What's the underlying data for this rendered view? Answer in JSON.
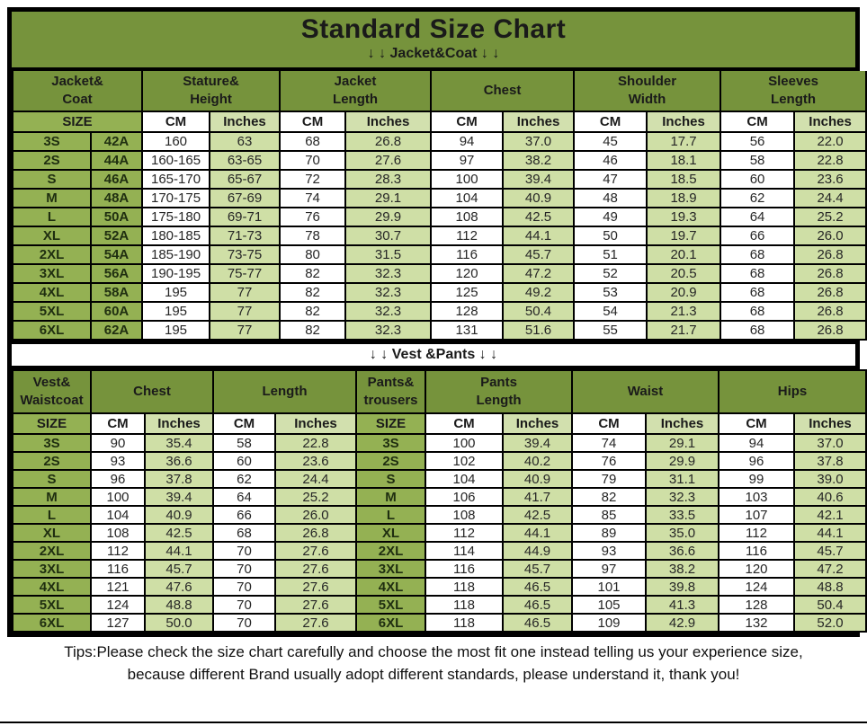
{
  "title": "Standard Size Chart",
  "palette": {
    "header_green": "#76933C",
    "label_green": "#94B153",
    "cell_light_green": "#CFDFA6",
    "cell_white": "#FFFFFF",
    "grid_line": "#000000"
  },
  "labels": {
    "size": "SIZE",
    "cm": "CM",
    "inches": "Inches"
  },
  "jacket": {
    "divider": "↓ ↓  Jacket&Coat ↓ ↓",
    "groups": [
      {
        "l1": "Jacket&",
        "l2": "Coat"
      },
      {
        "l1": "Stature&",
        "l2": "Height"
      },
      {
        "l1": "Jacket",
        "l2": "Length"
      },
      {
        "l1": "Chest",
        "l2": ""
      },
      {
        "l1": "Shoulder",
        "l2": "Width"
      },
      {
        "l1": "Sleeves",
        "l2": "Length"
      }
    ],
    "rows": [
      [
        "3S",
        "42A",
        "160",
        "63",
        "68",
        "26.8",
        "94",
        "37.0",
        "45",
        "17.7",
        "56",
        "22.0"
      ],
      [
        "2S",
        "44A",
        "160-165",
        "63-65",
        "70",
        "27.6",
        "97",
        "38.2",
        "46",
        "18.1",
        "58",
        "22.8"
      ],
      [
        "S",
        "46A",
        "165-170",
        "65-67",
        "72",
        "28.3",
        "100",
        "39.4",
        "47",
        "18.5",
        "60",
        "23.6"
      ],
      [
        "M",
        "48A",
        "170-175",
        "67-69",
        "74",
        "29.1",
        "104",
        "40.9",
        "48",
        "18.9",
        "62",
        "24.4"
      ],
      [
        "L",
        "50A",
        "175-180",
        "69-71",
        "76",
        "29.9",
        "108",
        "42.5",
        "49",
        "19.3",
        "64",
        "25.2"
      ],
      [
        "XL",
        "52A",
        "180-185",
        "71-73",
        "78",
        "30.7",
        "112",
        "44.1",
        "50",
        "19.7",
        "66",
        "26.0"
      ],
      [
        "2XL",
        "54A",
        "185-190",
        "73-75",
        "80",
        "31.5",
        "116",
        "45.7",
        "51",
        "20.1",
        "68",
        "26.8"
      ],
      [
        "3XL",
        "56A",
        "190-195",
        "75-77",
        "82",
        "32.3",
        "120",
        "47.2",
        "52",
        "20.5",
        "68",
        "26.8"
      ],
      [
        "4XL",
        "58A",
        "195",
        "77",
        "82",
        "32.3",
        "125",
        "49.2",
        "53",
        "20.9",
        "68",
        "26.8"
      ],
      [
        "5XL",
        "60A",
        "195",
        "77",
        "82",
        "32.3",
        "128",
        "50.4",
        "54",
        "21.3",
        "68",
        "26.8"
      ],
      [
        "6XL",
        "62A",
        "195",
        "77",
        "82",
        "32.3",
        "131",
        "51.6",
        "55",
        "21.7",
        "68",
        "26.8"
      ]
    ]
  },
  "vest": {
    "divider": "↓ ↓  Vest &Pants ↓ ↓",
    "groups": [
      {
        "l1": "Vest&",
        "l2": "Waistcoat"
      },
      {
        "l1": "Chest",
        "l2": ""
      },
      {
        "l1": "Length",
        "l2": ""
      },
      {
        "l1": "Pants&",
        "l2": "trousers"
      },
      {
        "l1": "Pants",
        "l2": "Length"
      },
      {
        "l1": "Waist",
        "l2": ""
      },
      {
        "l1": "Hips",
        "l2": ""
      }
    ],
    "rows": [
      [
        "3S",
        "90",
        "35.4",
        "58",
        "22.8",
        "3S",
        "100",
        "39.4",
        "74",
        "29.1",
        "94",
        "37.0"
      ],
      [
        "2S",
        "93",
        "36.6",
        "60",
        "23.6",
        "2S",
        "102",
        "40.2",
        "76",
        "29.9",
        "96",
        "37.8"
      ],
      [
        "S",
        "96",
        "37.8",
        "62",
        "24.4",
        "S",
        "104",
        "40.9",
        "79",
        "31.1",
        "99",
        "39.0"
      ],
      [
        "M",
        "100",
        "39.4",
        "64",
        "25.2",
        "M",
        "106",
        "41.7",
        "82",
        "32.3",
        "103",
        "40.6"
      ],
      [
        "L",
        "104",
        "40.9",
        "66",
        "26.0",
        "L",
        "108",
        "42.5",
        "85",
        "33.5",
        "107",
        "42.1"
      ],
      [
        "XL",
        "108",
        "42.5",
        "68",
        "26.8",
        "XL",
        "112",
        "44.1",
        "89",
        "35.0",
        "112",
        "44.1"
      ],
      [
        "2XL",
        "112",
        "44.1",
        "70",
        "27.6",
        "2XL",
        "114",
        "44.9",
        "93",
        "36.6",
        "116",
        "45.7"
      ],
      [
        "3XL",
        "116",
        "45.7",
        "70",
        "27.6",
        "3XL",
        "116",
        "45.7",
        "97",
        "38.2",
        "120",
        "47.2"
      ],
      [
        "4XL",
        "121",
        "47.6",
        "70",
        "27.6",
        "4XL",
        "118",
        "46.5",
        "101",
        "39.8",
        "124",
        "48.8"
      ],
      [
        "5XL",
        "124",
        "48.8",
        "70",
        "27.6",
        "5XL",
        "118",
        "46.5",
        "105",
        "41.3",
        "128",
        "50.4"
      ],
      [
        "6XL",
        "127",
        "50.0",
        "70",
        "27.6",
        "6XL",
        "118",
        "46.5",
        "109",
        "42.9",
        "132",
        "52.0"
      ]
    ]
  },
  "tips": {
    "line1": "Tips:Please check the size chart carefully and choose the most fit one instead telling us your experience size,",
    "line2": "because different Brand usually adopt different standards, please understand it, thank you!"
  }
}
